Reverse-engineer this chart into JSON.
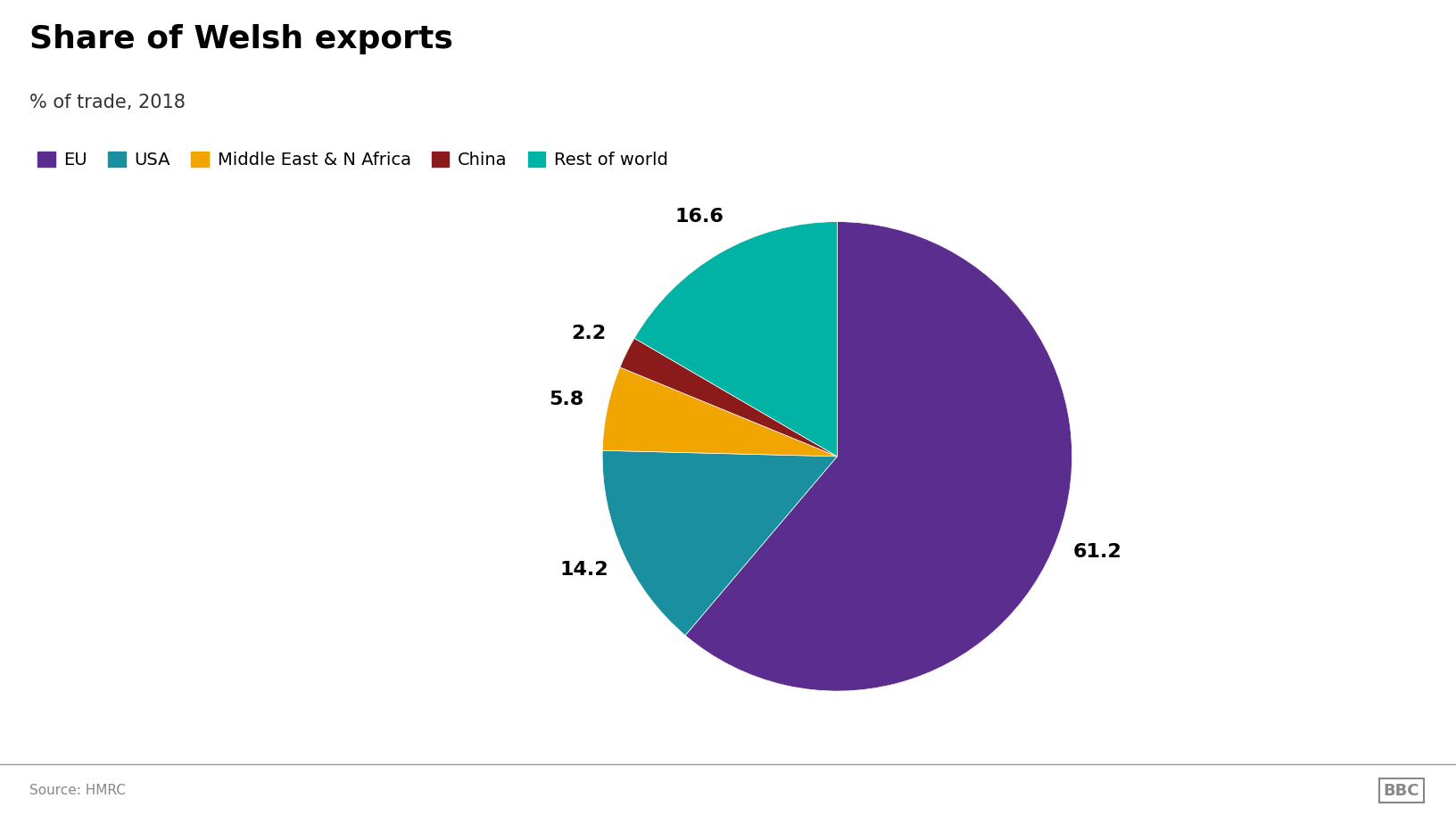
{
  "title": "Share of Welsh exports",
  "subtitle": "% of trade, 2018",
  "source": "Source: HMRC",
  "labels": [
    "EU",
    "USA",
    "Middle East & N Africa",
    "China",
    "Rest of world"
  ],
  "values": [
    61.2,
    14.2,
    5.8,
    2.2,
    16.6
  ],
  "colors": [
    "#5b2d8e",
    "#1a8fa0",
    "#f0a500",
    "#8b1a1a",
    "#00b3a4"
  ],
  "label_values": [
    "61.2",
    "14.2",
    "5.8",
    "2.2",
    "16.6"
  ],
  "background_color": "#ffffff",
  "title_fontsize": 26,
  "subtitle_fontsize": 15,
  "legend_fontsize": 14,
  "label_fontsize": 16
}
